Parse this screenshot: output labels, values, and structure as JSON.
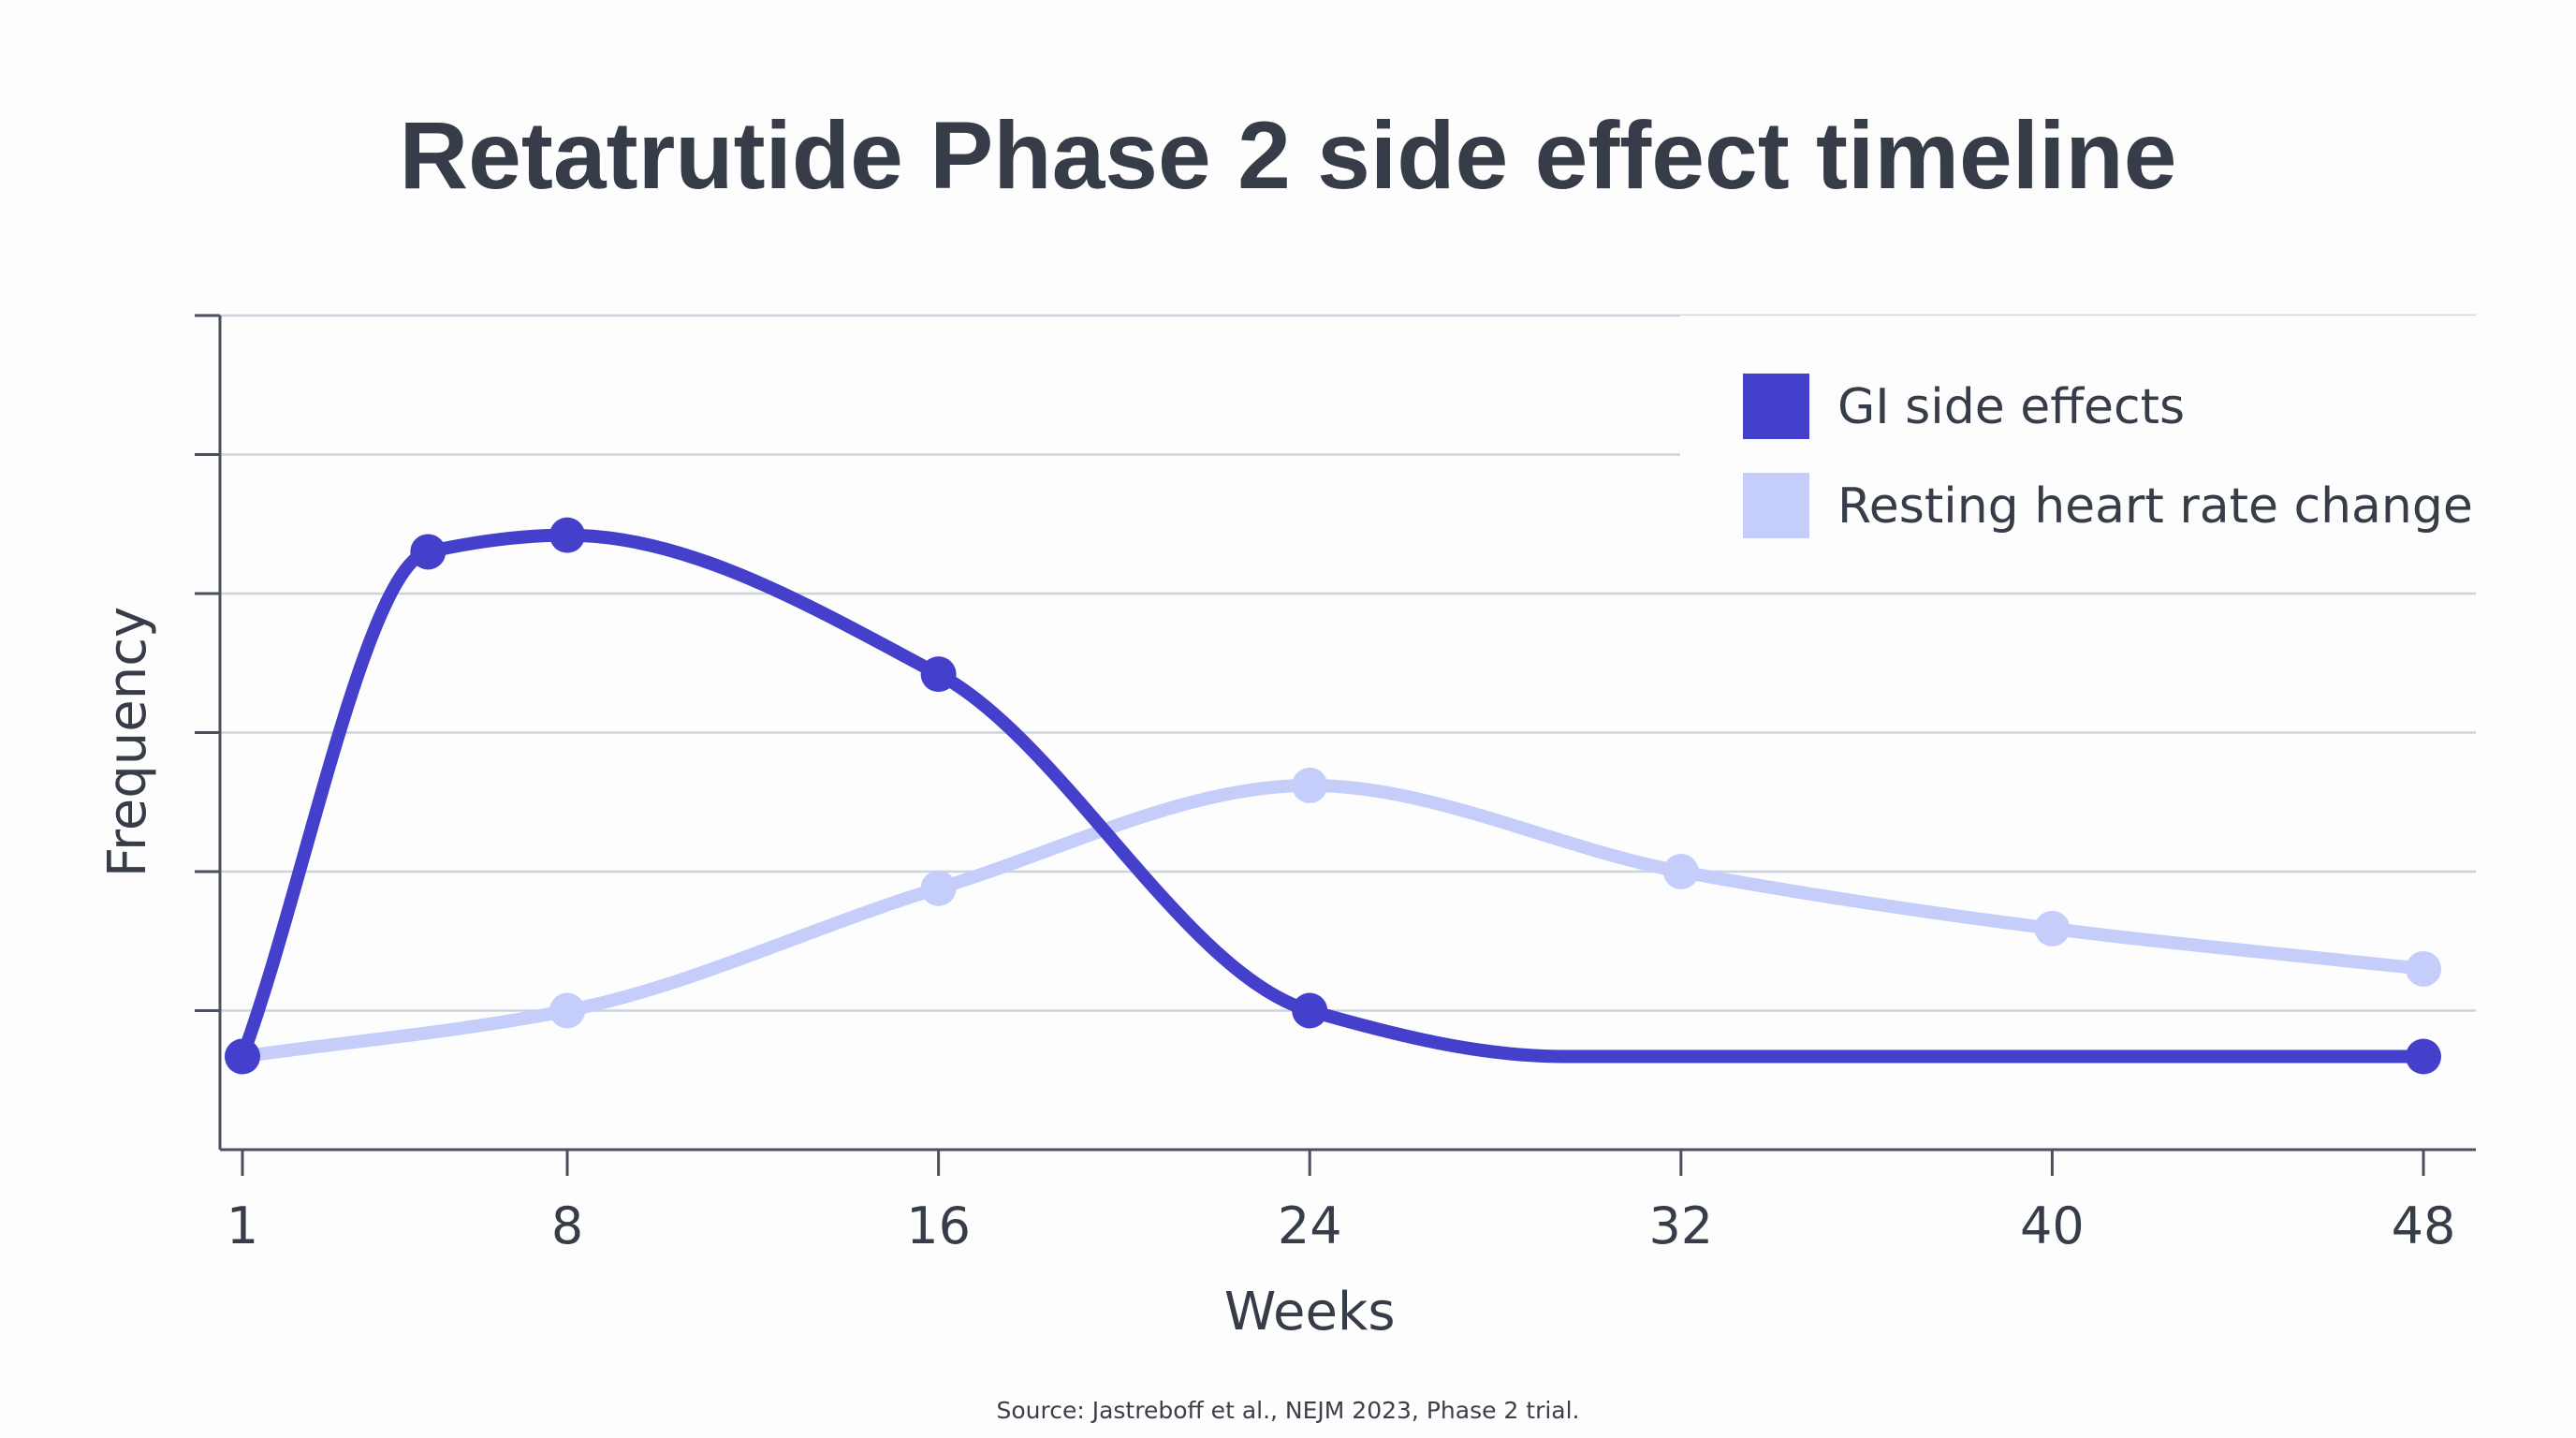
{
  "chart_data": {
    "type": "line",
    "title": "Retatrutide Phase 2 side effect timeline",
    "xlabel": "Weeks",
    "ylabel": "Frequency",
    "x_ticks": [
      1,
      8,
      16,
      24,
      32,
      40,
      48
    ],
    "xlim": [
      1,
      48
    ],
    "ylim": [
      0,
      6
    ],
    "y_tick_count": 7,
    "y_tick_labels_shown": false,
    "grid": "horizontal",
    "legend_position": "top-right",
    "series": [
      {
        "name": "GI side effects",
        "color": "#4440cc",
        "points": [
          {
            "x": 1,
            "y": 0.67
          },
          {
            "x": 5,
            "y": 4.3
          },
          {
            "x": 8,
            "y": 4.42
          },
          {
            "x": 16,
            "y": 3.42
          },
          {
            "x": 24,
            "y": 1.0
          },
          {
            "x": 48,
            "y": 0.67
          }
        ],
        "spline_points": [
          {
            "x": 1,
            "y": 0.67
          },
          {
            "x": 5,
            "y": 4.3
          },
          {
            "x": 8,
            "y": 4.42
          },
          {
            "x": 16,
            "y": 3.42
          },
          {
            "x": 24,
            "y": 1.0
          },
          {
            "x": 29.5,
            "y": 0.67
          },
          {
            "x": 48,
            "y": 0.67
          }
        ]
      },
      {
        "name": "Resting heart rate change",
        "color": "#c5cdfa",
        "points": [
          {
            "x": 1,
            "y": 0.67
          },
          {
            "x": 8,
            "y": 1.0
          },
          {
            "x": 16,
            "y": 1.88
          },
          {
            "x": 24,
            "y": 2.62
          },
          {
            "x": 32,
            "y": 2.0
          },
          {
            "x": 40,
            "y": 1.59
          },
          {
            "x": 48,
            "y": 1.3
          }
        ]
      }
    ],
    "source": "Source: Jastreboff et al., NEJM 2023, Phase 2 trial."
  }
}
